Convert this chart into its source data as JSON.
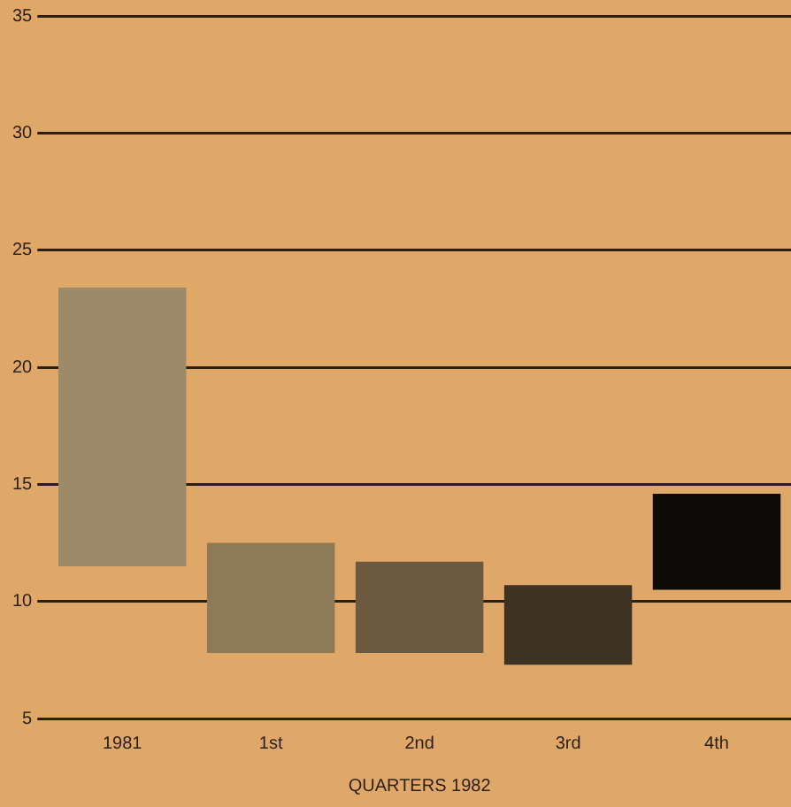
{
  "chart_data": {
    "type": "bar",
    "xlabel": "QUARTERS 1982",
    "categories": [
      "1981",
      "1st",
      "2nd",
      "3rd",
      "4th"
    ],
    "base": [
      11.5,
      7.8,
      7.8,
      7.3,
      10.5
    ],
    "values": [
      11.9,
      4.7,
      3.9,
      3.4,
      4.1
    ],
    "colors": [
      "#9c8a68",
      "#8f7a58",
      "#6b5a40",
      "#3e3222",
      "#0d0b08"
    ],
    "ylim": [
      5,
      35
    ],
    "yticks": [
      5,
      10,
      15,
      20,
      25,
      30,
      35
    ],
    "grid": "y",
    "legend": false
  }
}
